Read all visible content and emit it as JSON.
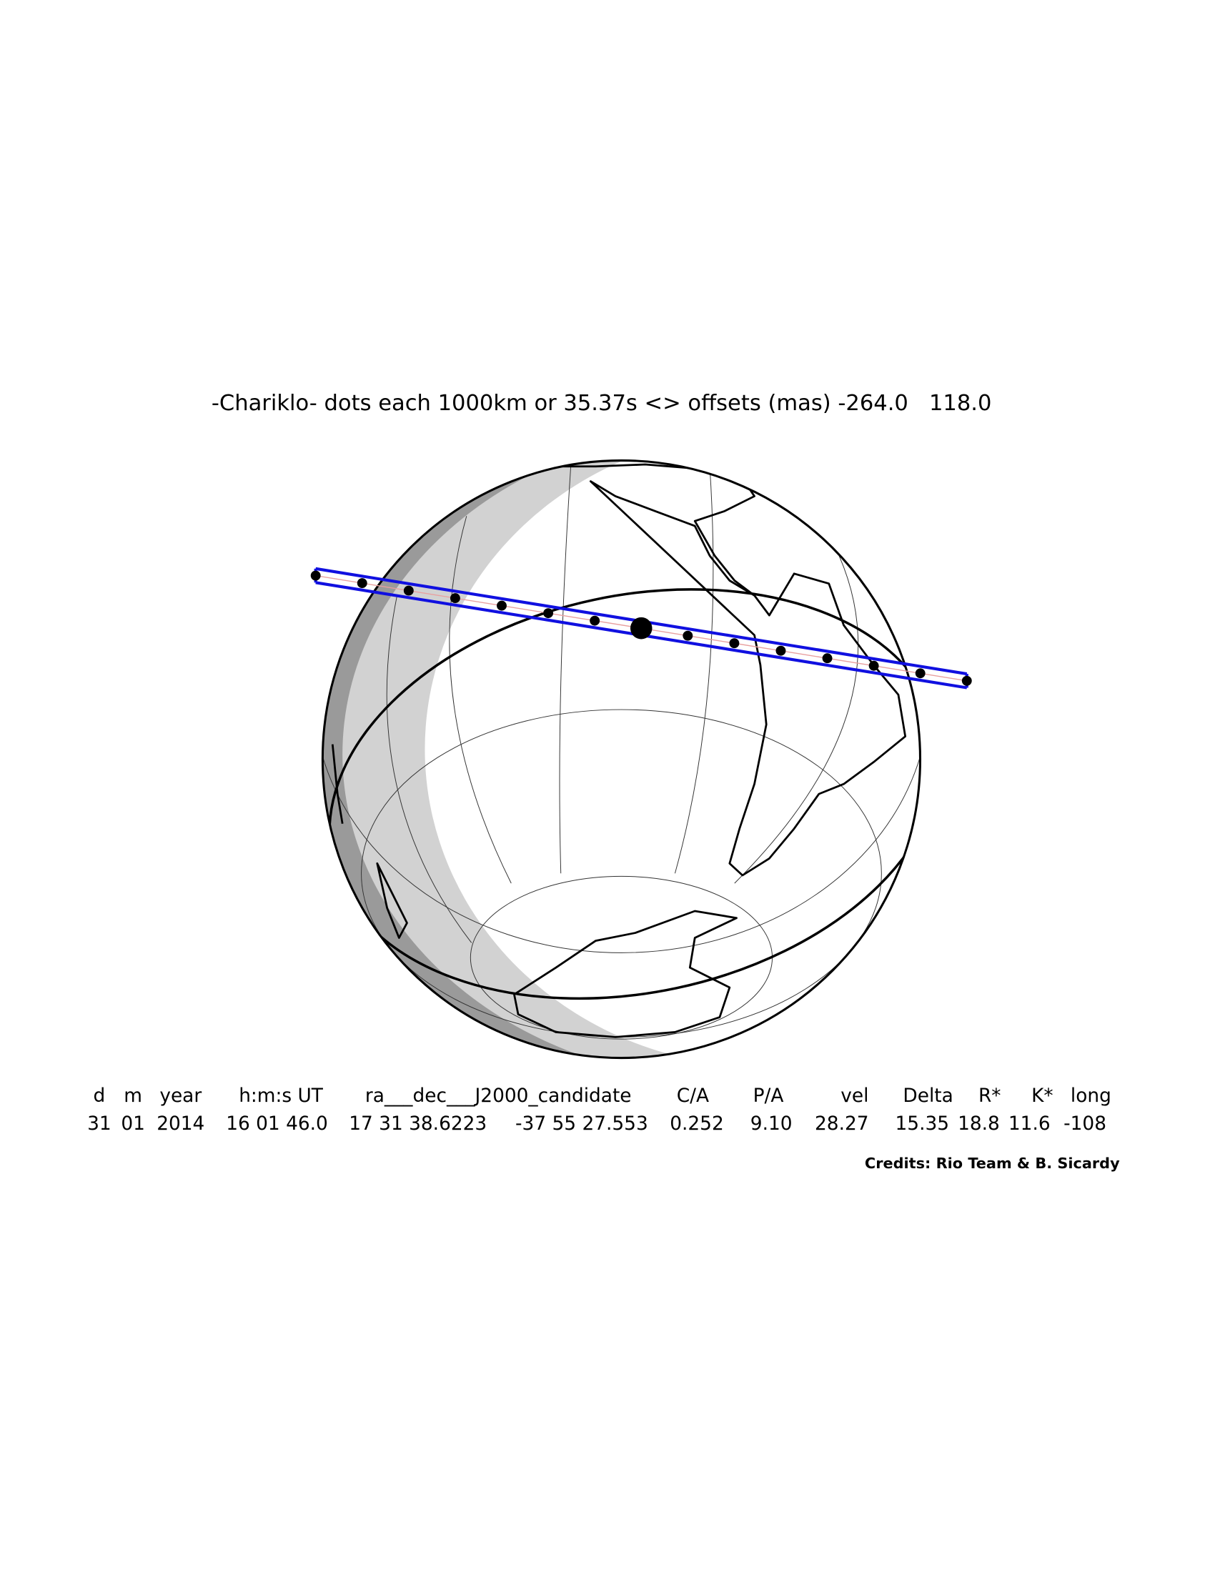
{
  "title": "-Chariklo- dots each 1000km or 35.37s <> offsets (mas) -264.0   118.0",
  "table": {
    "header": [
      "d",
      "m",
      "year",
      "h:m:s UT",
      "ra___dec___J2000_candidate",
      "C/A",
      "P/A",
      "vel",
      "Delta",
      "R*",
      "K*",
      "long"
    ],
    "rows": [
      [
        "31",
        "01",
        "2014",
        "16 01 46.0",
        "17 31 38.6223",
        "-37 55 27.553",
        "0.252",
        "9.10",
        "28.27",
        "15.35",
        "18.8",
        "11.6",
        "-108"
      ]
    ]
  },
  "credits": "Credits: Rio Team & B. Sicardy"
}
